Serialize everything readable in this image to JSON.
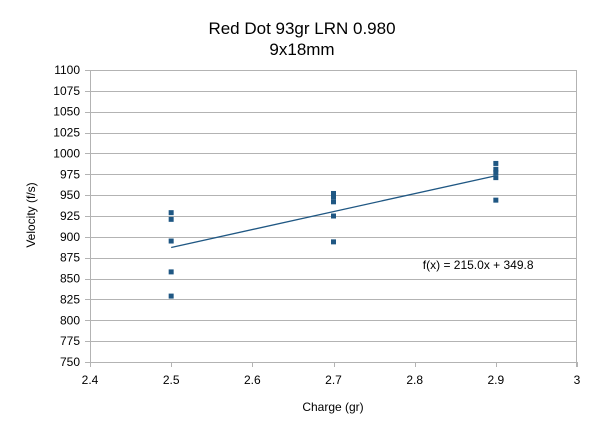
{
  "chart_data": {
    "type": "scatter",
    "title": "Red Dot 93gr LRN 0.980",
    "subtitle": "9x18mm",
    "xlabel": "Charge (gr)",
    "ylabel": "Velocity (f/s)",
    "xlim": [
      2.4,
      3
    ],
    "ylim": [
      750,
      1100
    ],
    "x_ticks": [
      2.4,
      2.5,
      2.6,
      2.7,
      2.8,
      2.9,
      3
    ],
    "x_tick_labels": [
      "2.4",
      "2.5",
      "2.6",
      "2.7",
      "2.8",
      "2.9",
      "3"
    ],
    "y_ticks": [
      750,
      775,
      800,
      825,
      850,
      875,
      900,
      925,
      950,
      975,
      1000,
      1025,
      1050,
      1075,
      1100
    ],
    "y_tick_labels": [
      "750",
      "775",
      "800",
      "825",
      "850",
      "875",
      "900",
      "925",
      "950",
      "975",
      "1000",
      "1025",
      "1050",
      "1075",
      "1100"
    ],
    "grid": "horizontal",
    "legend": "none",
    "series": [
      {
        "points": [
          {
            "x": 2.5,
            "y": 929
          },
          {
            "x": 2.5,
            "y": 921
          },
          {
            "x": 2.5,
            "y": 895
          },
          {
            "x": 2.5,
            "y": 858
          },
          {
            "x": 2.5,
            "y": 829
          },
          {
            "x": 2.7,
            "y": 952
          },
          {
            "x": 2.7,
            "y": 948
          },
          {
            "x": 2.7,
            "y": 942
          },
          {
            "x": 2.7,
            "y": 925
          },
          {
            "x": 2.7,
            "y": 894
          },
          {
            "x": 2.9,
            "y": 988
          },
          {
            "x": 2.9,
            "y": 981
          },
          {
            "x": 2.9,
            "y": 977
          },
          {
            "x": 2.9,
            "y": 971
          },
          {
            "x": 2.9,
            "y": 944
          }
        ],
        "color": "#1f5783"
      }
    ],
    "trendline": {
      "slope": 215.0,
      "intercept": 349.8,
      "x_range": [
        2.5,
        2.9
      ],
      "color": "#1f5783"
    },
    "annotations": [
      {
        "text": "f(x) = 215.0x + 349.8",
        "x": 2.81,
        "y": 866
      }
    ],
    "colors": {
      "grid": "#b3b3b3",
      "axis": "#b3b3b3",
      "marker": "#1f5783",
      "text": "#000000"
    }
  }
}
